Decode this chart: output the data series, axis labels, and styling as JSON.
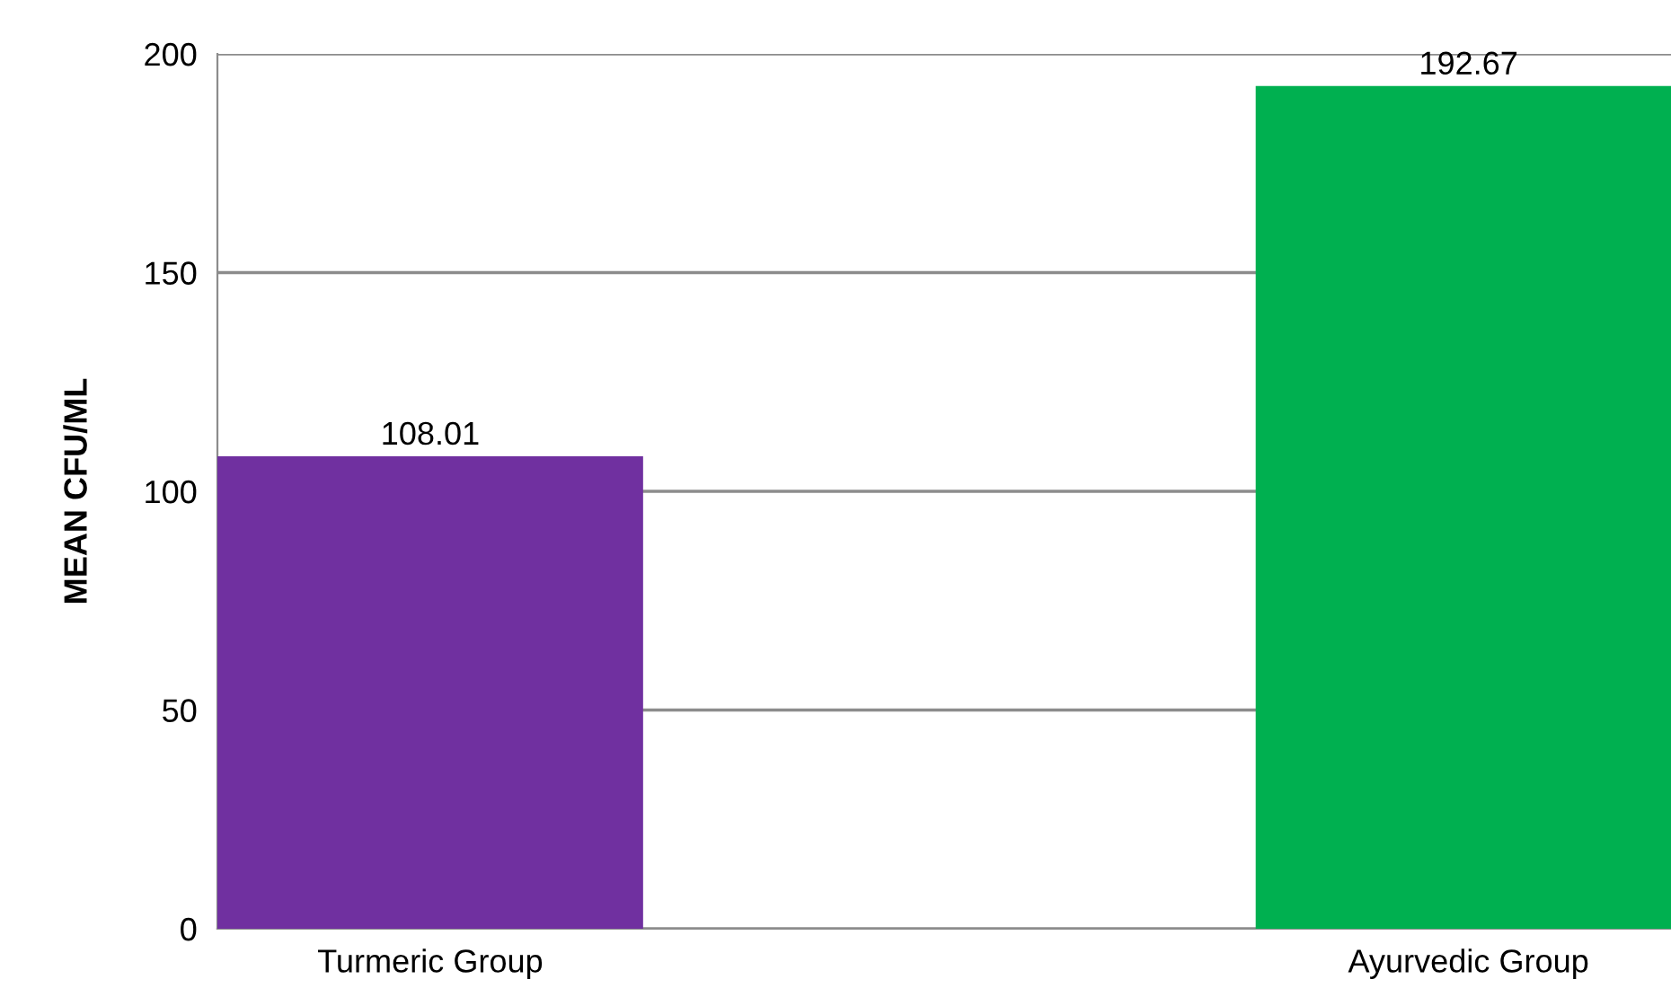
{
  "chart_data": {
    "type": "bar",
    "ylabel": "MEAN CFU/ML",
    "categories": [
      "Turmeric Group",
      "Ayurvedic Group"
    ],
    "values": [
      108.01,
      192.67
    ],
    "colors": [
      "#7030a0",
      "#00b050"
    ],
    "ylim": [
      0,
      200
    ],
    "yticks": [
      0,
      50,
      100,
      150,
      200
    ],
    "grid": "y",
    "data_labels": true
  }
}
